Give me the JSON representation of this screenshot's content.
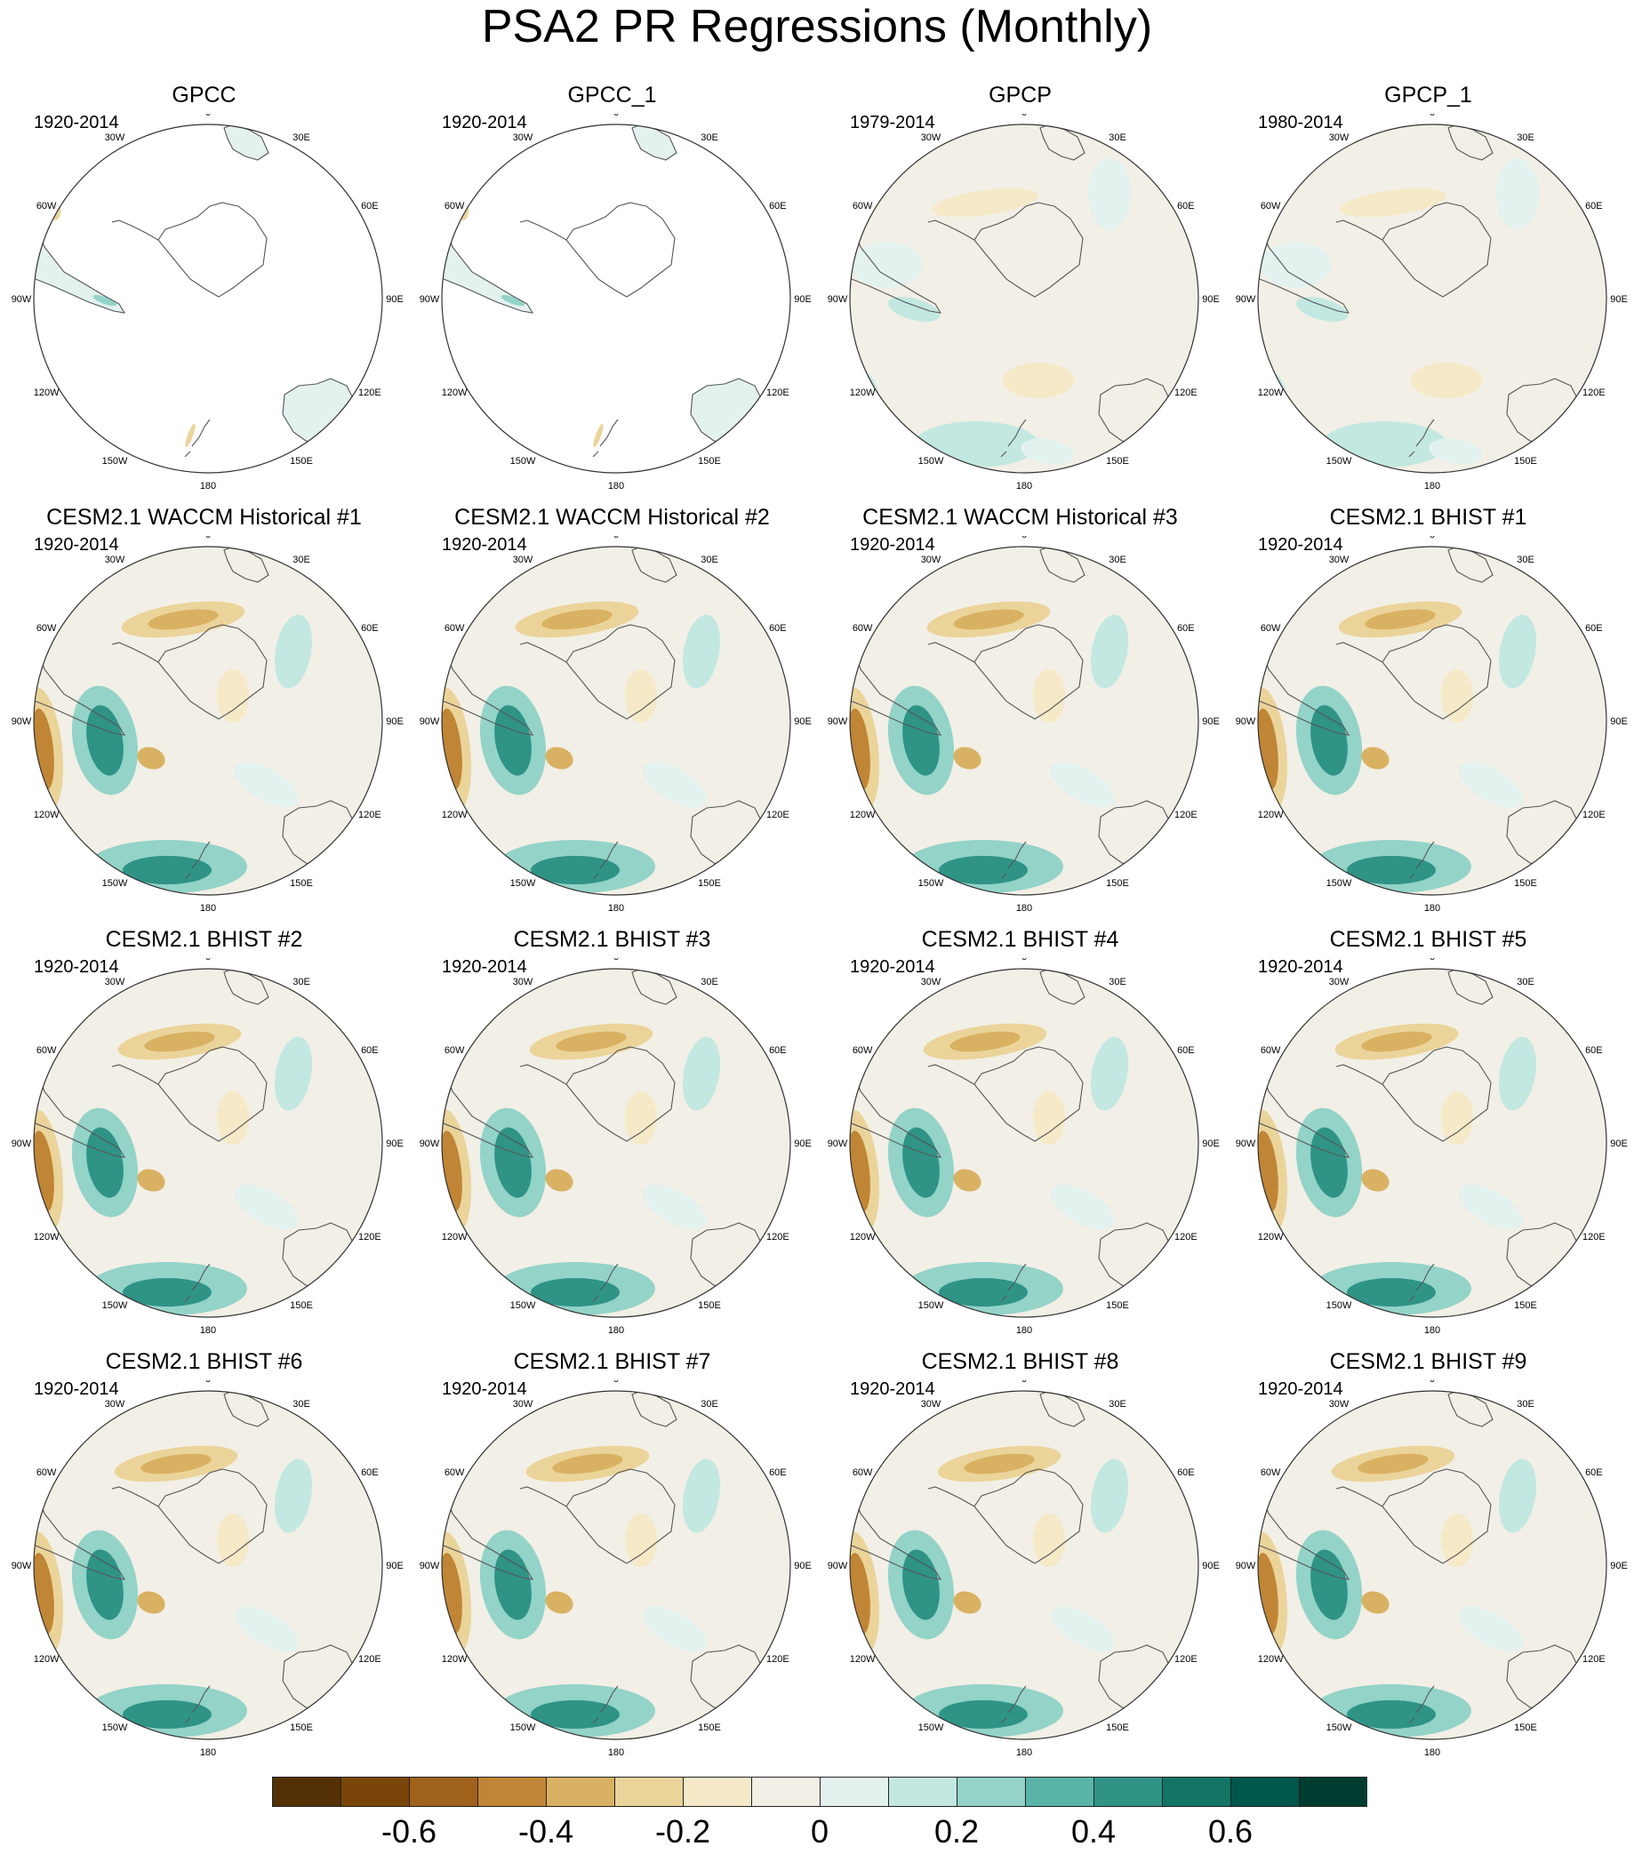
{
  "title": "PSA2 PR Regressions (Monthly)",
  "longitude_labels": [
    "0",
    "30E",
    "60E",
    "90E",
    "120E",
    "150E",
    "180",
    "150W",
    "120W",
    "90W",
    "60W",
    "30W"
  ],
  "panels": [
    {
      "title": "GPCC",
      "period": "1920-2014",
      "kind": "land"
    },
    {
      "title": "GPCC_1",
      "period": "1920-2014",
      "kind": "land"
    },
    {
      "title": "GPCP",
      "period": "1979-2014",
      "kind": "obs"
    },
    {
      "title": "GPCP_1",
      "period": "1980-2014",
      "kind": "obs"
    },
    {
      "title": "CESM2.1 WACCM Historical #1",
      "period": "1920-2014",
      "kind": "model"
    },
    {
      "title": "CESM2.1 WACCM Historical #2",
      "period": "1920-2014",
      "kind": "model"
    },
    {
      "title": "CESM2.1 WACCM Historical #3",
      "period": "1920-2014",
      "kind": "model"
    },
    {
      "title": "CESM2.1 BHIST #1",
      "period": "1920-2014",
      "kind": "model"
    },
    {
      "title": "CESM2.1 BHIST #2",
      "period": "1920-2014",
      "kind": "model"
    },
    {
      "title": "CESM2.1 BHIST #3",
      "period": "1920-2014",
      "kind": "model"
    },
    {
      "title": "CESM2.1 BHIST #4",
      "period": "1920-2014",
      "kind": "model"
    },
    {
      "title": "CESM2.1 BHIST #5",
      "period": "1920-2014",
      "kind": "model"
    },
    {
      "title": "CESM2.1 BHIST #6",
      "period": "1920-2014",
      "kind": "model"
    },
    {
      "title": "CESM2.1 BHIST #7",
      "period": "1920-2014",
      "kind": "model"
    },
    {
      "title": "CESM2.1 BHIST #8",
      "period": "1920-2014",
      "kind": "model"
    },
    {
      "title": "CESM2.1 BHIST #9",
      "period": "1920-2014",
      "kind": "model"
    }
  ],
  "colorbar": {
    "colors": [
      "#543005",
      "#7a4509",
      "#a0621b",
      "#c08535",
      "#d9b162",
      "#ebd49a",
      "#f5e9c8",
      "#f2efe6",
      "#e3f1ef",
      "#c2e8e1",
      "#93d3c8",
      "#5bb4a8",
      "#2f9386",
      "#137566",
      "#01574a",
      "#003c30"
    ],
    "tick_labels": [
      {
        "label": "-0.6",
        "boundary": 2
      },
      {
        "label": "-0.4",
        "boundary": 4
      },
      {
        "label": "-0.2",
        "boundary": 6
      },
      {
        "label": "0",
        "boundary": 8
      },
      {
        "label": "0.2",
        "boundary": 10
      },
      {
        "label": "0.4",
        "boundary": 12
      },
      {
        "label": "0.6",
        "boundary": 14
      }
    ]
  }
}
